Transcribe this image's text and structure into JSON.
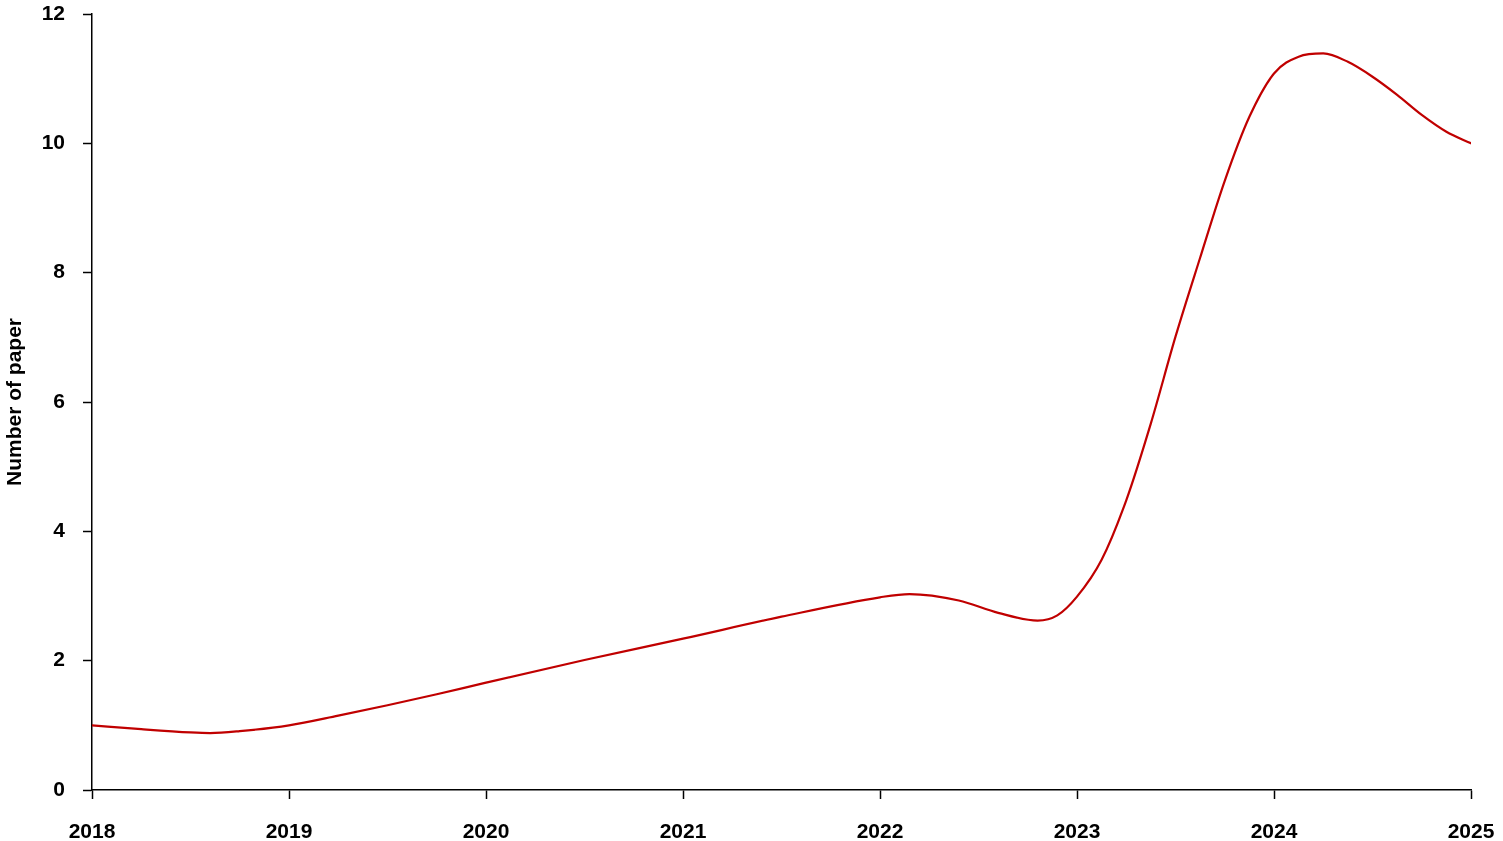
{
  "chart_data": {
    "type": "line",
    "ylabel": "Number of paper",
    "x": [
      2018,
      2018.25,
      2018.5,
      2018.6,
      2018.75,
      2019,
      2019.25,
      2019.5,
      2019.75,
      2020,
      2020.5,
      2021,
      2021.5,
      2022,
      2022.15,
      2022.4,
      2022.6,
      2022.8,
      2022.9,
      2023,
      2023.125,
      2023.25,
      2023.375,
      2023.5,
      2023.625,
      2023.75,
      2023.875,
      2024,
      2024.125,
      2024.25,
      2024.375,
      2024.5,
      2024.625,
      2024.75,
      2024.875,
      2025
    ],
    "series": [
      {
        "color": "#c00000",
        "values": [
          1.0,
          0.94,
          0.89,
          0.88,
          0.91,
          1.0,
          1.15,
          1.31,
          1.48,
          1.66,
          2.01,
          2.34,
          2.68,
          2.98,
          3.03,
          2.93,
          2.74,
          2.62,
          2.7,
          2.99,
          3.56,
          4.48,
          5.67,
          7.01,
          8.23,
          9.42,
          10.41,
          11.08,
          11.34,
          11.39,
          11.26,
          11.03,
          10.75,
          10.44,
          10.18,
          10.0
        ]
      }
    ],
    "xlim": [
      2018,
      2025
    ],
    "xticks": [
      2018,
      2019,
      2020,
      2021,
      2022,
      2023,
      2024,
      2025
    ],
    "ylim": [
      0,
      12
    ],
    "yticks": [
      0,
      2,
      4,
      6,
      8,
      10,
      12
    ],
    "grid": false,
    "legend": false,
    "marker": "none",
    "line_style": "solid"
  }
}
